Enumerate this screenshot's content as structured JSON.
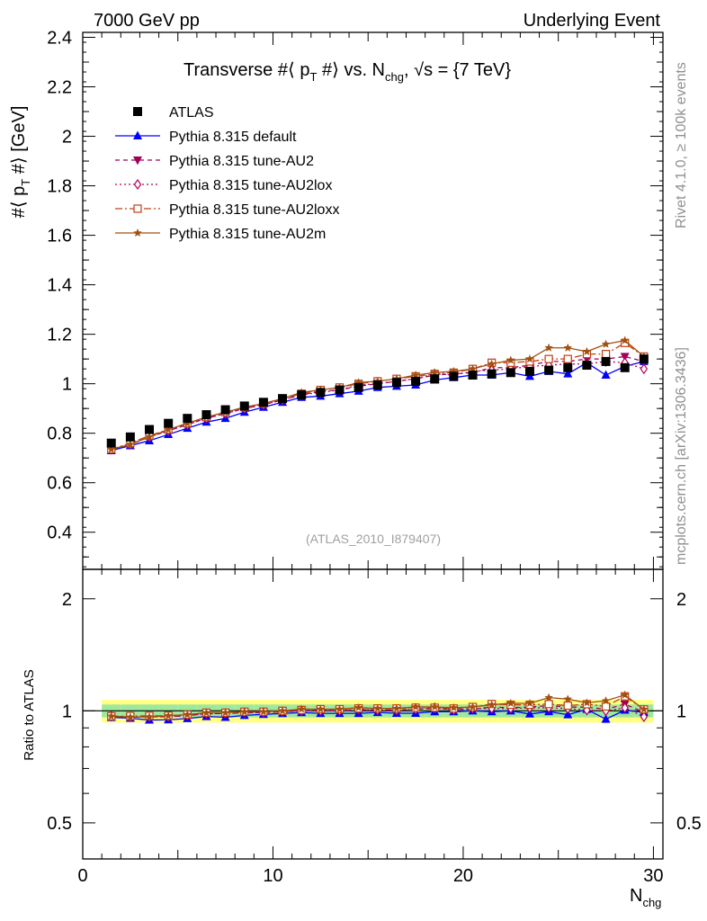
{
  "header": {
    "left": "7000 GeV pp",
    "right": "Underlying Event"
  },
  "side_labels": {
    "rivet": "Rivet 4.1.0, ≥ 100k events",
    "mcplots": "mcplots.cern.ch [arXiv:1306.3436]"
  },
  "watermark": "(ATLAS_2010_I879407)",
  "chart_data": {
    "type": "line",
    "title": {
      "main": "Transverse #⟨ p",
      "main_sub": "T",
      "mid": " #⟩ vs. N",
      "mid_sub": "chg",
      "end": ", √s = {7 TeV}"
    },
    "ylabel": {
      "a": "#⟨ p",
      "sub": "T",
      "b": " #⟩ [GeV]"
    },
    "xlabel": {
      "a": "N",
      "sub": "chg"
    },
    "ratio_ylabel": "Ratio to ATLAS",
    "xlim": [
      0,
      30.5
    ],
    "ylim": [
      0.25,
      2.42
    ],
    "ratio_ylim": [
      0.4,
      2.4
    ],
    "x_ticks": [
      0,
      10,
      20,
      30
    ],
    "x_tick_labels": [
      "0",
      "10",
      "20",
      "30"
    ],
    "y_ticks": [
      0.4,
      0.6,
      0.8,
      1,
      1.2,
      1.4,
      1.6,
      1.8,
      2,
      2.2,
      2.4
    ],
    "y_tick_labels": [
      "0.4",
      "0.6",
      "0.8",
      "1",
      "1.2",
      "1.4",
      "1.6",
      "1.8",
      "2",
      "2.2",
      "2.4"
    ],
    "ratio_ticks": [
      0.5,
      1,
      2
    ],
    "ratio_tick_labels": [
      "0.5",
      "1",
      "2"
    ],
    "x": [
      1.5,
      2.5,
      3.5,
      4.5,
      5.5,
      6.5,
      7.5,
      8.5,
      9.5,
      10.5,
      11.5,
      12.5,
      13.5,
      14.5,
      15.5,
      16.5,
      17.5,
      18.5,
      19.5,
      20.5,
      21.5,
      22.5,
      23.5,
      24.5,
      25.5,
      26.5,
      27.5,
      28.5,
      29.5
    ],
    "data": {
      "name": "ATLAS",
      "values": [
        0.76,
        0.785,
        0.815,
        0.84,
        0.86,
        0.875,
        0.895,
        0.91,
        0.925,
        0.94,
        0.955,
        0.965,
        0.975,
        0.985,
        0.995,
        1.005,
        1.01,
        1.02,
        1.03,
        1.035,
        1.04,
        1.045,
        1.05,
        1.055,
        1.065,
        1.075,
        1.09,
        1.065,
        1.1
      ],
      "band_inner": 0.04,
      "band_outer": 0.07,
      "band_inner_color": "#9ee89e",
      "band_outer_color": "#ffff80"
    },
    "series": [
      {
        "name": "Pythia 8.315 default",
        "color": "#0000ff",
        "marker": "triangle-up",
        "dash": "",
        "values": [
          0.73,
          0.75,
          0.77,
          0.795,
          0.82,
          0.845,
          0.86,
          0.885,
          0.905,
          0.925,
          0.945,
          0.95,
          0.96,
          0.97,
          0.985,
          0.99,
          0.995,
          1.015,
          1.025,
          1.035,
          1.035,
          1.045,
          1.03,
          1.05,
          1.04,
          1.085,
          1.035,
          1.07,
          1.09
        ]
      },
      {
        "name": "Pythia 8.315 tune-AU2",
        "color": "#a0005a",
        "marker": "triangle-down",
        "dash": "5,4",
        "values": [
          0.735,
          0.755,
          0.785,
          0.81,
          0.835,
          0.86,
          0.88,
          0.9,
          0.915,
          0.935,
          0.955,
          0.97,
          0.975,
          0.99,
          1.0,
          1.01,
          1.02,
          1.035,
          1.04,
          1.045,
          1.065,
          1.065,
          1.075,
          1.09,
          1.09,
          1.1,
          1.1,
          1.11,
          1.09
        ]
      },
      {
        "name": "Pythia 8.315 tune-AU2lox",
        "color": "#b4005a",
        "marker": "diamond-open",
        "dash": "2,3",
        "values": [
          0.735,
          0.755,
          0.785,
          0.81,
          0.835,
          0.86,
          0.88,
          0.9,
          0.915,
          0.935,
          0.955,
          0.965,
          0.975,
          0.995,
          1.0,
          1.01,
          1.02,
          1.04,
          1.035,
          1.05,
          1.055,
          1.06,
          1.07,
          1.075,
          1.08,
          1.08,
          1.09,
          1.085,
          1.06
        ]
      },
      {
        "name": "Pythia 8.315 tune-AU2loxx",
        "color": "#c04010",
        "marker": "square-open",
        "dash": "8,3,2,3",
        "values": [
          0.735,
          0.76,
          0.79,
          0.815,
          0.84,
          0.865,
          0.885,
          0.905,
          0.92,
          0.94,
          0.96,
          0.975,
          0.985,
          1.0,
          1.01,
          1.02,
          1.03,
          1.04,
          1.045,
          1.06,
          1.085,
          1.085,
          1.09,
          1.1,
          1.1,
          1.12,
          1.12,
          1.165,
          1.11
        ]
      },
      {
        "name": "Pythia 8.315 tune-AU2m",
        "color": "#a05010",
        "marker": "star",
        "dash": "",
        "values": [
          0.735,
          0.755,
          0.785,
          0.815,
          0.84,
          0.865,
          0.885,
          0.905,
          0.92,
          0.94,
          0.965,
          0.975,
          0.985,
          1.005,
          1.01,
          1.02,
          1.035,
          1.045,
          1.05,
          1.06,
          1.08,
          1.095,
          1.1,
          1.145,
          1.145,
          1.13,
          1.16,
          1.175,
          1.11
        ]
      }
    ]
  }
}
